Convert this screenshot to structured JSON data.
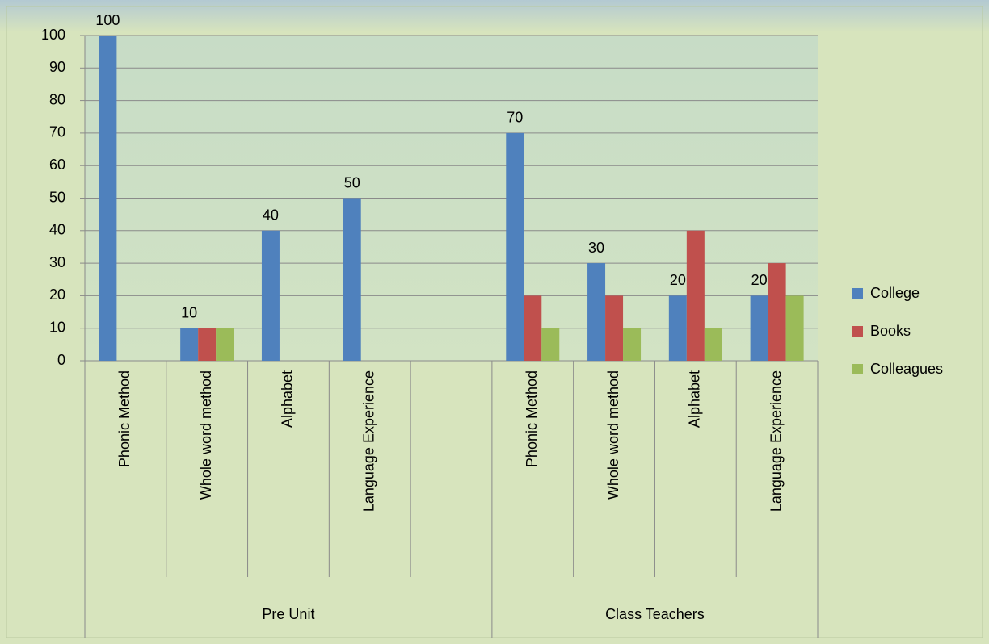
{
  "chart_data": {
    "type": "bar",
    "categories": [
      "Phonic Method",
      "Whole word method",
      "Alphabet",
      "Language Experience",
      null,
      "Phonic Method",
      "Whole word method",
      "Alphabet",
      "Language Experience"
    ],
    "category_groups": [
      "Pre Unit",
      "Pre Unit",
      "Pre Unit",
      "Pre Unit",
      "Pre Unit",
      "Class Teachers",
      "Class Teachers",
      "Class Teachers",
      "Class Teachers"
    ],
    "series": [
      {
        "name": "College",
        "color": "#4f81bd",
        "values": [
          100,
          10,
          40,
          50,
          null,
          70,
          30,
          20,
          20
        ],
        "data_labels": true
      },
      {
        "name": "Books",
        "color": "#c0504d",
        "values": [
          0,
          10,
          0,
          0,
          null,
          20,
          20,
          40,
          30
        ],
        "data_labels": false
      },
      {
        "name": "Colleagues",
        "color": "#9bbb59",
        "values": [
          0,
          10,
          0,
          0,
          null,
          10,
          10,
          10,
          20
        ],
        "data_labels": false
      }
    ],
    "ylim": [
      0,
      100
    ],
    "yticks": [
      0,
      10,
      20,
      30,
      40,
      50,
      60,
      70,
      80,
      90,
      100
    ],
    "grid": true,
    "legend": "right"
  }
}
